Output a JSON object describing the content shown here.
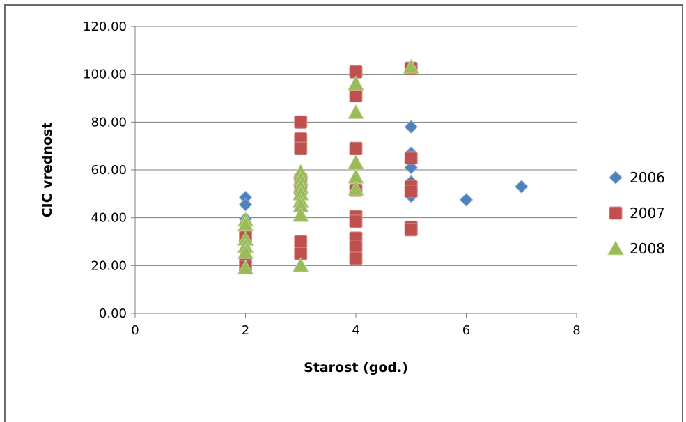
{
  "chart_data": {
    "type": "scatter",
    "title": "",
    "xlabel": "Starost (god.)",
    "ylabel": "CIC vrednost",
    "xlim": [
      0,
      8
    ],
    "ylim": [
      0,
      120
    ],
    "x_ticks": [
      0,
      2,
      4,
      6,
      8
    ],
    "y_ticks": [
      0,
      20,
      40,
      60,
      80,
      100,
      120
    ],
    "x_tick_labels": [
      "0",
      "2",
      "4",
      "6",
      "8"
    ],
    "y_tick_labels": [
      "0.00",
      "20.00",
      "40.00",
      "60.00",
      "80.00",
      "100.00",
      "120.00"
    ],
    "grid": "horizontal",
    "legend_position": "right",
    "series": [
      {
        "name": "2006",
        "color": "#4f81bd",
        "marker": "diamond",
        "points": [
          [
            2,
            48.5
          ],
          [
            2,
            45.5
          ],
          [
            2,
            39.5
          ],
          [
            2,
            23
          ],
          [
            2,
            21
          ],
          [
            3,
            55
          ],
          [
            3,
            52
          ],
          [
            3,
            50
          ],
          [
            4,
            52
          ],
          [
            5,
            78
          ],
          [
            5,
            67
          ],
          [
            5,
            61
          ],
          [
            5,
            55
          ],
          [
            5,
            49
          ],
          [
            6,
            47.5
          ],
          [
            7,
            53
          ]
        ]
      },
      {
        "name": "2007",
        "color": "#c0504d",
        "marker": "square",
        "points": [
          [
            2,
            32
          ],
          [
            2,
            21
          ],
          [
            2,
            19.5
          ],
          [
            3,
            80
          ],
          [
            3,
            73
          ],
          [
            3,
            69
          ],
          [
            3,
            56
          ],
          [
            3,
            52
          ],
          [
            3,
            30
          ],
          [
            3,
            25
          ],
          [
            4,
            101
          ],
          [
            4,
            91
          ],
          [
            4,
            69
          ],
          [
            4,
            51.5
          ],
          [
            4,
            40.5
          ],
          [
            4,
            38.5
          ],
          [
            4,
            31.5
          ],
          [
            4,
            28
          ],
          [
            4,
            23
          ],
          [
            5,
            102.5
          ],
          [
            5,
            65
          ],
          [
            5,
            53
          ],
          [
            5,
            51
          ],
          [
            5,
            36
          ],
          [
            5,
            35
          ]
        ]
      },
      {
        "name": "2008",
        "color": "#9bbb59",
        "marker": "triangle",
        "points": [
          [
            2,
            39
          ],
          [
            2,
            37
          ],
          [
            2,
            31
          ],
          [
            2,
            28
          ],
          [
            2,
            25.5
          ],
          [
            2,
            19
          ],
          [
            3,
            59
          ],
          [
            3,
            56
          ],
          [
            3,
            53
          ],
          [
            3,
            50
          ],
          [
            3,
            47
          ],
          [
            3,
            45
          ],
          [
            3,
            41
          ],
          [
            3,
            20
          ],
          [
            4,
            96
          ],
          [
            4,
            84
          ],
          [
            4,
            63
          ],
          [
            4,
            57
          ],
          [
            4,
            52
          ],
          [
            5,
            103
          ]
        ]
      }
    ]
  }
}
